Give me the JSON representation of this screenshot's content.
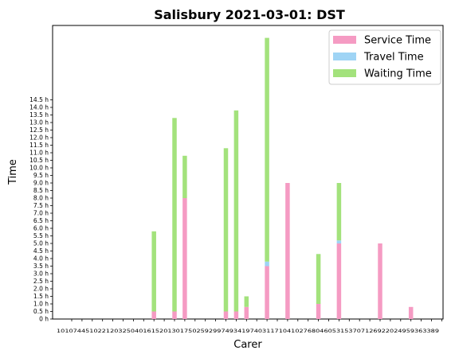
{
  "chart_data": {
    "type": "bar",
    "stacked": true,
    "title": "Salisbury 2021-03-01: DST",
    "xlabel": "Carer",
    "ylabel": "Time",
    "ylim": [
      0,
      19.0
    ],
    "ytick_values": [
      0,
      0.5,
      1,
      1.5,
      2,
      2.5,
      3,
      3.5,
      4,
      4.5,
      5,
      5.5,
      6,
      6.5,
      7,
      7.5,
      8,
      8.5,
      9,
      9.5,
      10,
      10.5,
      11,
      11.5,
      12,
      12.5,
      13,
      13.5,
      14,
      14.5
    ],
    "ytick_labels": [
      "0 h",
      "0.5 h",
      "1.0 h",
      "1.5 h",
      "2.0 h",
      "2.5 h",
      "3.0 h",
      "3.5 h",
      "4.0 h",
      "4.5 h",
      "5.0 h",
      "5.5 h",
      "6.0 h",
      "6.5 h",
      "7.0 h",
      "7.5 h",
      "8.0 h",
      "8.5 h",
      "9.0 h",
      "9.5 h",
      "10.0 h",
      "10.5 h",
      "11.0 h",
      "11.5 h",
      "12.0 h",
      "12.5 h",
      "13.0 h",
      "13.5 h",
      "14.0 h",
      "14.5 h"
    ],
    "categories_text": "101074451022120325040161520130175025929974934197403117104102768046053153707126922024959363389",
    "legend_position": "top-right",
    "series": [
      {
        "name": "Service Time",
        "color": "#f59bc3",
        "values": [
          0,
          0,
          0,
          0,
          0,
          0,
          0,
          0,
          0.5,
          0,
          0.5,
          8.0,
          0,
          0,
          0,
          0.5,
          0.5,
          0.8,
          0,
          3.5,
          0,
          9.0,
          0,
          0,
          1.0,
          0,
          5.0,
          0,
          0,
          0,
          5.0,
          0,
          0,
          0.8,
          0,
          0,
          0
        ]
      },
      {
        "name": "Travel Time",
        "color": "#9fd4f5",
        "values": [
          0,
          0,
          0,
          0,
          0,
          0,
          0,
          0,
          0,
          0,
          0,
          0,
          0,
          0,
          0,
          0,
          0,
          0,
          0,
          0.3,
          0,
          0,
          0,
          0,
          0,
          0,
          0.2,
          0,
          0,
          0,
          0,
          0,
          0,
          0,
          0,
          0,
          0
        ]
      },
      {
        "name": "Waiting Time",
        "color": "#a3e27c",
        "values": [
          0,
          0,
          0,
          0,
          0,
          0,
          0,
          0,
          5.3,
          0,
          12.8,
          2.8,
          0,
          0,
          0,
          10.8,
          13.3,
          0.7,
          0,
          14.8,
          0,
          0,
          0,
          0,
          3.3,
          0,
          3.8,
          0,
          0,
          0,
          0,
          0,
          0,
          0,
          0,
          0,
          0
        ]
      }
    ]
  }
}
